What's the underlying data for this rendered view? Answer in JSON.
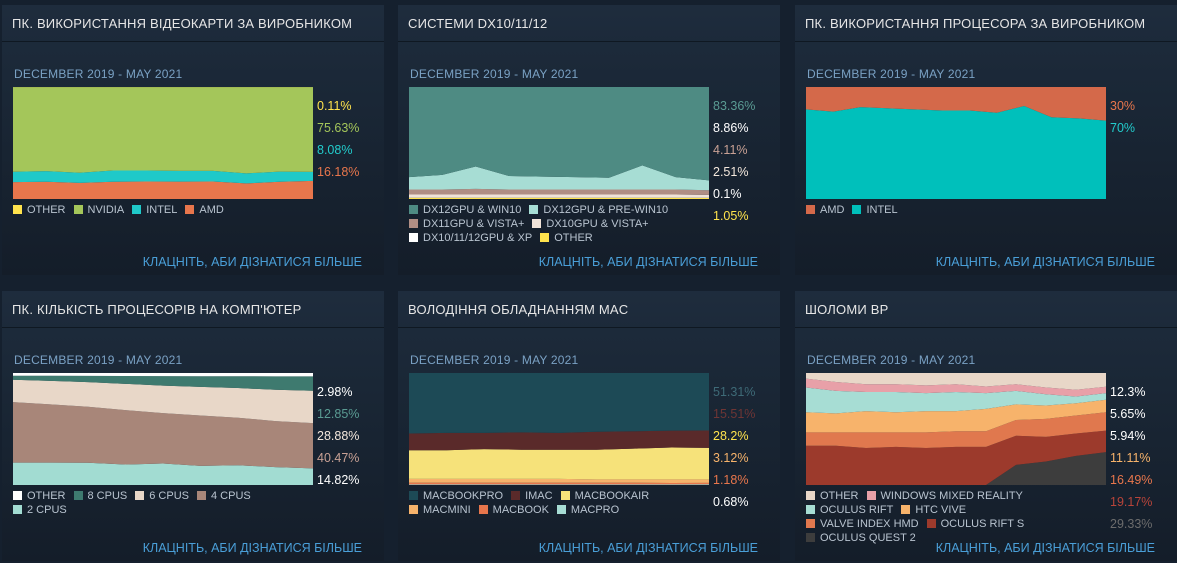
{
  "more_label": "КЛАЦНІТЬ, АБИ ДІЗНАТИСЯ БІЛЬШЕ",
  "panels": [
    {
      "title": "ПК. ВИКОРИСТАННЯ ВІДЕОКАРТИ ЗА ВИРОБНИКОМ",
      "date_range": "DECEMBER 2019 - MAY 2021",
      "legend_cols": 4,
      "values_display": [
        {
          "text": "0.11%",
          "color": "#ffe34d"
        },
        {
          "text": "75.63%",
          "color": "#a4c65a"
        },
        {
          "text": "8.08%",
          "color": "#22cccc"
        },
        {
          "text": "16.18%",
          "color": "#e8764c"
        }
      ]
    },
    {
      "title": "СИСТЕМИ DX10/11/12",
      "date_range": "DECEMBER 2019 - MAY 2021",
      "legend_cols": 2,
      "values_display": [
        {
          "text": "83.36%",
          "color": "#5a9b93"
        },
        {
          "text": "8.86%",
          "color": "#ffffff"
        },
        {
          "text": "4.11%",
          "color": "#c9a195"
        },
        {
          "text": "2.51%",
          "color": "#f3e7dc"
        },
        {
          "text": "0.1%",
          "color": "#ffffff"
        },
        {
          "text": "1.05%",
          "color": "#ffe34d"
        }
      ]
    },
    {
      "title": "ПК. ВИКОРИСТАННЯ ПРОЦЕСОРА ЗА ВИРОБНИКОМ",
      "date_range": "DECEMBER 2019 - MAY 2021",
      "legend_cols": 4,
      "values_display": [
        {
          "text": "30%",
          "color": "#e8764c"
        },
        {
          "text": "70%",
          "color": "#22cccc"
        }
      ]
    },
    {
      "title": "ПК. КІЛЬКІСТЬ ПРОЦЕСОРІВ НА КОМП'ЮТЕР",
      "date_range": "DECEMBER 2019 - MAY 2021",
      "legend_cols": 4,
      "values_display": [
        {
          "text": "2.98%",
          "color": "#ffffff"
        },
        {
          "text": "12.85%",
          "color": "#5a9b93"
        },
        {
          "text": "28.88%",
          "color": "#f3e7dc"
        },
        {
          "text": "40.47%",
          "color": "#c9a195"
        },
        {
          "text": "14.82%",
          "color": "#ffffff"
        }
      ]
    },
    {
      "title": "ВОЛОДІННЯ ОБЛАДНАННЯМ MAC",
      "date_range": "DECEMBER 2019 - MAY 2021",
      "legend_cols": 3,
      "values_display": [
        {
          "text": "51.31%",
          "color": "#3e6a77"
        },
        {
          "text": "15.51%",
          "color": "#6e3535"
        },
        {
          "text": "28.2%",
          "color": "#ffe34d"
        },
        {
          "text": "3.12%",
          "color": "#f7b36b"
        },
        {
          "text": "1.18%",
          "color": "#e8764c"
        },
        {
          "text": "0.68%",
          "color": "#ffffff"
        }
      ]
    },
    {
      "title": "ШОЛОМИ ВР",
      "date_range": "DECEMBER 2019 - MAY 2021",
      "legend_cols": 2,
      "values_display": [
        {
          "text": "12.3%",
          "color": "#ffffff"
        },
        {
          "text": "5.65%",
          "color": "#ffffff"
        },
        {
          "text": "5.94%",
          "color": "#ffffff"
        },
        {
          "text": "11.11%",
          "color": "#f7b36b"
        },
        {
          "text": "16.49%",
          "color": "#e8764c"
        },
        {
          "text": "19.17%",
          "color": "#b8443a"
        },
        {
          "text": "29.33%",
          "color": "#6c6c6c"
        }
      ]
    }
  ],
  "chart_data": [
    {
      "type": "area",
      "title": "ПК. ВИКОРИСТАННЯ ВІДЕОКАРТИ ЗА ВИРОБНИКОМ",
      "x_range": "DECEMBER 2019 - MAY 2021",
      "ylim": [
        0,
        100
      ],
      "series": [
        {
          "name": "OTHER",
          "color": "#ffe34d",
          "values": [
            0.11,
            0.11,
            0.11,
            0.11,
            0.11,
            0.11,
            0.11,
            0.11,
            0.11,
            0.11
          ]
        },
        {
          "name": "NVIDIA",
          "color": "#a4c65a",
          "values": [
            75.6,
            75.0,
            76.5,
            74.5,
            74.5,
            74.8,
            74.8,
            77.0,
            75.5,
            75.63
          ]
        },
        {
          "name": "INTEL",
          "color": "#1fc9c9",
          "values": [
            9.2,
            9.5,
            9.0,
            10.0,
            9.8,
            9.6,
            9.5,
            9.0,
            9.0,
            8.08
          ]
        },
        {
          "name": "AMD",
          "color": "#e8764c",
          "values": [
            15.1,
            15.4,
            14.4,
            15.4,
            15.6,
            15.5,
            15.6,
            13.9,
            15.4,
            16.18
          ]
        }
      ]
    },
    {
      "type": "area",
      "title": "СИСТЕМИ DX10/11/12",
      "x_range": "DECEMBER 2019 - MAY 2021",
      "ylim": [
        0,
        100
      ],
      "series": [
        {
          "name": "DX12GPU & WIN10",
          "color": "#4e8b83",
          "values": [
            80.5,
            78.5,
            71.0,
            79.5,
            80.0,
            80.5,
            81.0,
            70.0,
            80.5,
            83.36
          ]
        },
        {
          "name": "DX12GPU & PRE-WIN10",
          "color": "#a7ddd4",
          "values": [
            11.0,
            13.0,
            20.0,
            12.0,
            11.5,
            11.0,
            10.5,
            21.5,
            11.0,
            8.86
          ]
        },
        {
          "name": "DX11GPU & VISTA+",
          "color": "#b08e84",
          "values": [
            4.5,
            4.5,
            5.0,
            4.5,
            4.5,
            4.5,
            4.5,
            4.5,
            4.5,
            4.11
          ]
        },
        {
          "name": "DX10GPU & VISTA+",
          "color": "#f0e3d8",
          "values": [
            2.8,
            2.8,
            2.8,
            2.8,
            2.8,
            2.8,
            2.8,
            2.8,
            2.8,
            2.51
          ]
        },
        {
          "name": "DX10/11/12GPU & XP",
          "color": "#ffffff",
          "values": [
            0.1,
            0.1,
            0.1,
            0.1,
            0.1,
            0.1,
            0.1,
            0.1,
            0.1,
            0.1
          ]
        },
        {
          "name": "OTHER",
          "color": "#ffe34d",
          "values": [
            1.1,
            1.1,
            1.1,
            1.1,
            1.1,
            1.1,
            1.1,
            1.1,
            1.1,
            1.05
          ]
        }
      ]
    },
    {
      "type": "area",
      "title": "ПК. ВИКОРИСТАННЯ ПРОЦЕСОРА ЗА ВИРОБНИКОМ",
      "x_range": "DECEMBER 2019 - MAY 2021",
      "ylim": [
        0,
        100
      ],
      "series": [
        {
          "name": "AMD",
          "color": "#d4694a",
          "values": [
            20,
            22,
            18,
            19,
            20,
            21,
            21,
            23,
            17,
            27,
            28,
            30
          ]
        },
        {
          "name": "INTEL",
          "color": "#00c0bb",
          "values": [
            80,
            78,
            82,
            81,
            80,
            79,
            79,
            77,
            83,
            73,
            72,
            70
          ]
        }
      ]
    },
    {
      "type": "area",
      "title": "ПК. КІЛЬКІСТЬ ПРОЦЕСОРІВ НА КОМП'ЮТЕР",
      "x_range": "DECEMBER 2019 - MAY 2021",
      "ylim": [
        0,
        100
      ],
      "series": [
        {
          "name": "OTHER",
          "color": "#ffffff",
          "values": [
            2.5,
            2.5,
            2.6,
            2.7,
            2.8,
            2.9,
            2.9,
            3.0,
            2.98
          ]
        },
        {
          "name": "8 CPUS",
          "color": "#3e7a6f",
          "values": [
            3.5,
            4.5,
            5.5,
            7.0,
            8.5,
            9.5,
            10.5,
            12.0,
            12.85
          ]
        },
        {
          "name": "6 CPUS",
          "color": "#e8d7c8",
          "values": [
            20.0,
            21.0,
            22.0,
            23.5,
            24.5,
            25.5,
            26.5,
            28.0,
            28.88
          ]
        },
        {
          "name": "4 CPUS",
          "color": "#a88679",
          "values": [
            54.0,
            52.0,
            50.0,
            48.5,
            45.0,
            45.0,
            42.5,
            41.0,
            40.47
          ]
        },
        {
          "name": "2 CPUS",
          "color": "#a2dcd2",
          "values": [
            20.0,
            20.0,
            19.9,
            18.3,
            19.2,
            17.1,
            17.6,
            16.0,
            14.82
          ]
        }
      ]
    },
    {
      "type": "area",
      "title": "ВОЛОДІННЯ ОБЛАДНАННЯМ MAC",
      "x_range": "DECEMBER 2019 - MAY 2021",
      "ylim": [
        0,
        100
      ],
      "series": [
        {
          "name": "MACBOOKPRO",
          "color": "#1d4a56",
          "values": [
            54.0,
            53.5,
            53.5,
            53.0,
            53.5,
            52.5,
            52.0,
            51.5,
            51.31
          ]
        },
        {
          "name": "IMAC",
          "color": "#5a2a2a",
          "values": [
            15.0,
            15.5,
            14.5,
            15.5,
            15.0,
            16.0,
            15.5,
            15.0,
            15.51
          ]
        },
        {
          "name": "MACBOOKAIR",
          "color": "#f6e27a",
          "values": [
            25.5,
            25.5,
            26.5,
            26.0,
            26.0,
            26.5,
            27.5,
            28.5,
            28.2
          ]
        },
        {
          "name": "MACMINI",
          "color": "#f7b36b",
          "values": [
            3.5,
            3.5,
            3.5,
            3.5,
            3.5,
            3.0,
            3.0,
            3.2,
            3.12
          ]
        },
        {
          "name": "MACBOOK",
          "color": "#e8764c",
          "values": [
            1.4,
            1.4,
            1.4,
            1.4,
            1.4,
            1.4,
            1.4,
            1.2,
            1.18
          ]
        },
        {
          "name": "MACPRO",
          "color": "#a7ddd4",
          "values": [
            0.6,
            0.6,
            0.6,
            0.6,
            0.6,
            0.6,
            0.6,
            0.6,
            0.68
          ]
        }
      ]
    },
    {
      "type": "area",
      "title": "ШОЛОМИ ВР",
      "x_range": "DECEMBER 2019 - MAY 2021",
      "ylim": [
        0,
        100
      ],
      "series": [
        {
          "name": "OTHER",
          "color": "#e8d7c8",
          "values": [
            5,
            8,
            10,
            10,
            11,
            10,
            12,
            10,
            13,
            15,
            12.3
          ]
        },
        {
          "name": "WINDOWS MIXED REALITY",
          "color": "#e8a0a8",
          "values": [
            8,
            8,
            7,
            7,
            7,
            7,
            6,
            6,
            6,
            6,
            5.65
          ]
        },
        {
          "name": "OCULUS RIFT",
          "color": "#a7ddd4",
          "values": [
            22,
            20,
            17,
            18,
            16,
            17,
            14,
            12,
            10,
            6,
            5.94
          ]
        },
        {
          "name": "HTC VIVE",
          "color": "#f7b36b",
          "values": [
            18,
            17,
            19,
            18,
            19,
            18,
            20,
            14,
            12,
            11,
            11.11
          ]
        },
        {
          "name": "VALVE INDEX HMD",
          "color": "#e0784e",
          "values": [
            12,
            12,
            14,
            13,
            14,
            14,
            14,
            14,
            16,
            16,
            16.49
          ]
        },
        {
          "name": "OCULUS RIFT S",
          "color": "#9c3a2c",
          "values": [
            35,
            35,
            33,
            34,
            33,
            34,
            34,
            26,
            22,
            20,
            19.17
          ]
        },
        {
          "name": "OCULUS QUEST 2",
          "color": "#3d3d3d",
          "values": [
            0,
            0,
            0,
            0,
            0,
            0,
            0,
            18,
            21,
            26,
            29.33
          ]
        }
      ]
    }
  ]
}
